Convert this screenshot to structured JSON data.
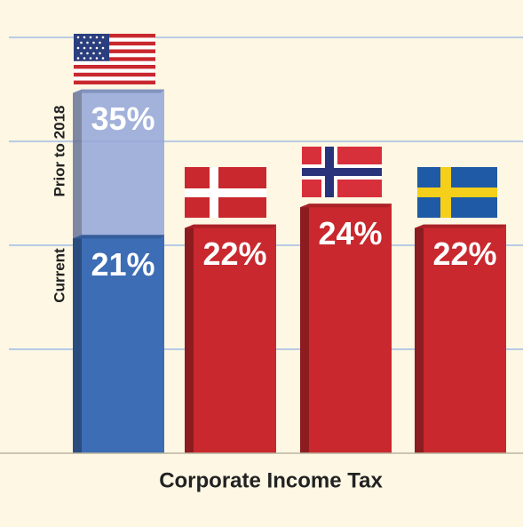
{
  "chart_data": {
    "type": "bar",
    "xlabel": "Corporate Income Tax",
    "categories": [
      null,
      null,
      null,
      null
    ],
    "series": [
      {
        "name": "Current",
        "values": [
          21,
          22,
          24,
          22
        ],
        "value_labels": [
          "21%",
          "22%",
          "24%",
          "22%"
        ],
        "colors": [
          "#3d6db5",
          "#c8282e",
          "#c8282e",
          "#c8282e"
        ]
      },
      {
        "name": "Prior to 2018",
        "values": [
          35,
          null,
          null,
          null
        ],
        "value_labels": [
          "35%",
          null,
          null,
          null
        ],
        "color": "#93a6d8"
      }
    ],
    "ylim": [
      0,
      43.6
    ],
    "yticks": [
      10,
      20,
      30,
      40
    ],
    "grid": true
  }
}
